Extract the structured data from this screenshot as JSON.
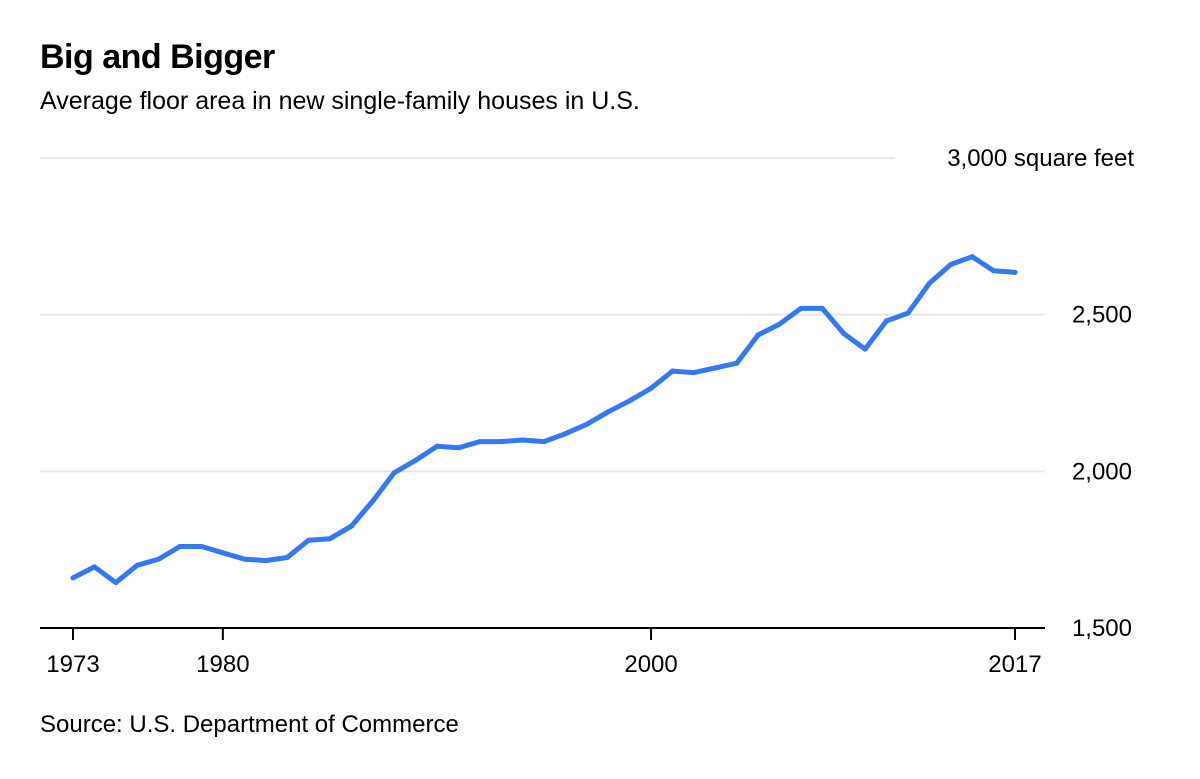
{
  "header": {
    "title": "Big and Bigger",
    "subtitle": "Average floor area in new single-family houses in U.S."
  },
  "footer": {
    "source": "Source: U.S. Department of Commerce"
  },
  "colors": {
    "line": "#3478f6",
    "grid": "#e6e6e6",
    "axis": "#000000"
  },
  "chart_data": {
    "type": "line",
    "title": "Big and Bigger",
    "subtitle": "Average floor area in new single-family houses in U.S.",
    "xlabel": "",
    "ylabel": "square feet",
    "xlim": [
      1973,
      2017
    ],
    "ylim": [
      1500,
      3000
    ],
    "x_ticks": [
      1973,
      1980,
      2000,
      2017
    ],
    "x_tick_labels": [
      "1973",
      "1980",
      "2000",
      "2017"
    ],
    "y_ticks": [
      1500,
      2000,
      2500,
      3000
    ],
    "y_tick_labels": [
      "1,500",
      "2,000",
      "2,500",
      "3,000 square feet"
    ],
    "grid": true,
    "y_axis_position": "right",
    "series": [
      {
        "name": "Average floor area",
        "x": [
          1973,
          1974,
          1975,
          1976,
          1977,
          1978,
          1979,
          1980,
          1981,
          1982,
          1983,
          1984,
          1985,
          1986,
          1987,
          1988,
          1989,
          1990,
          1991,
          1992,
          1993,
          1994,
          1995,
          1996,
          1997,
          1998,
          1999,
          2000,
          2001,
          2002,
          2003,
          2004,
          2005,
          2006,
          2007,
          2008,
          2009,
          2010,
          2011,
          2012,
          2013,
          2014,
          2015,
          2016,
          2017
        ],
        "values": [
          1660,
          1695,
          1645,
          1700,
          1720,
          1760,
          1760,
          1740,
          1720,
          1715,
          1725,
          1780,
          1785,
          1825,
          1905,
          1995,
          2035,
          2080,
          2075,
          2095,
          2095,
          2100,
          2095,
          2120,
          2150,
          2190,
          2225,
          2265,
          2320,
          2315,
          2330,
          2345,
          2435,
          2470,
          2520,
          2520,
          2440,
          2390,
          2480,
          2505,
          2600,
          2660,
          2685,
          2640,
          2635
        ]
      }
    ]
  }
}
